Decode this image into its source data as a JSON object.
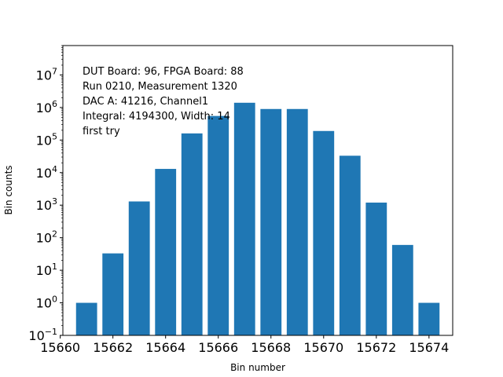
{
  "chart_data": {
    "type": "bar",
    "x": [
      15661,
      15662,
      15663,
      15664,
      15665,
      15666,
      15667,
      15668,
      15669,
      15670,
      15671,
      15672,
      15673,
      15674
    ],
    "values": [
      1,
      33,
      1300,
      13000,
      160000,
      550000,
      1400000,
      900000,
      900000,
      190000,
      33000,
      1200,
      60,
      1
    ],
    "xlabel": "Bin number",
    "ylabel": "Bin counts",
    "xlim": [
      15660.1,
      15674.9
    ],
    "ylim": [
      0.1,
      80000000
    ],
    "yscale": "log",
    "bar_color": "#1f77b4",
    "x_ticks": [
      15660,
      15662,
      15664,
      15666,
      15668,
      15670,
      15672,
      15674
    ],
    "x_tick_labels": [
      "15660",
      "15662",
      "15664",
      "15666",
      "15668",
      "15670",
      "15672",
      "15674"
    ],
    "y_ticks": [
      {
        "value": 0.1,
        "base": "10",
        "exp": "−1"
      },
      {
        "value": 1,
        "base": "10",
        "exp": "0"
      },
      {
        "value": 10,
        "base": "10",
        "exp": "1"
      },
      {
        "value": 100,
        "base": "10",
        "exp": "2"
      },
      {
        "value": 1000,
        "base": "10",
        "exp": "3"
      },
      {
        "value": 10000,
        "base": "10",
        "exp": "4"
      },
      {
        "value": 100000,
        "base": "10",
        "exp": "5"
      },
      {
        "value": 1000000,
        "base": "10",
        "exp": "6"
      },
      {
        "value": 10000000,
        "base": "10",
        "exp": "7"
      }
    ],
    "annotation_lines": [
      "DUT Board: 96, FPGA Board: 88",
      "Run 0210, Measurement 1320",
      "DAC A: 41216, Channel1",
      "Integral: 4194300, Width: 14",
      "first try"
    ],
    "grid": false,
    "legend": "none"
  }
}
